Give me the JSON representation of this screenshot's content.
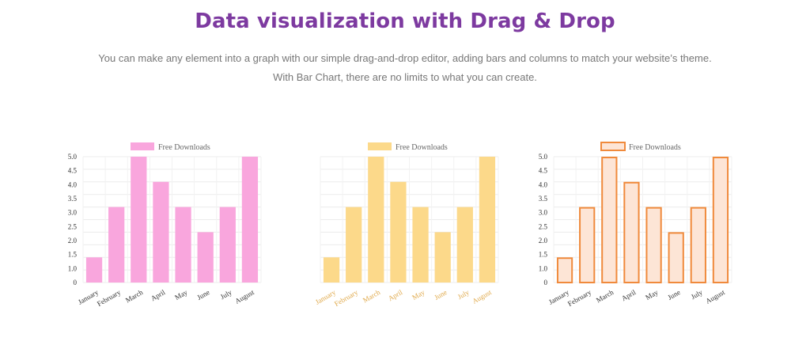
{
  "header": {
    "title": "Data visualization with Drag & Drop",
    "line1": "You can make any element into a graph with our simple drag-and-drop editor, adding bars and columns to match your website’s theme.",
    "line2": "With Bar Chart, there are no limits to what you can create."
  },
  "chart_data": [
    {
      "type": "bar",
      "legend": "Free Downloads",
      "legend_position": "top-center",
      "categories": [
        "January",
        "February",
        "March",
        "April",
        "May",
        "June",
        "July",
        "August"
      ],
      "series": [
        {
          "name": "Free Downloads",
          "values": [
            1,
            3,
            5,
            4,
            3,
            2,
            3,
            5
          ]
        }
      ],
      "ylim": [
        0,
        5
      ],
      "yticks": [
        "0",
        "1.0",
        "1.5",
        "2.0",
        "2.5",
        "3.0",
        "3.5",
        "4.0",
        "4.5",
        "5.0"
      ],
      "show_y_ticks": true,
      "grid": true,
      "fill": "#f9a6dd",
      "stroke": "#f9a6dd",
      "label_color": "#333333"
    },
    {
      "type": "bar",
      "legend": "Free Downloads",
      "legend_position": "top-center",
      "categories": [
        "January",
        "February",
        "March",
        "April",
        "May",
        "June",
        "July",
        "August"
      ],
      "series": [
        {
          "name": "Free Downloads",
          "values": [
            1,
            3,
            5,
            4,
            3,
            2,
            3,
            5
          ]
        }
      ],
      "ylim": [
        0,
        5
      ],
      "show_y_ticks": false,
      "grid": true,
      "fill": "#fcd98a",
      "stroke": "#fcd98a",
      "label_color": "#e0a94a"
    },
    {
      "type": "bar",
      "legend": "Free Downloads",
      "legend_position": "top-center",
      "categories": [
        "January",
        "February",
        "March",
        "April",
        "May",
        "June",
        "July",
        "August"
      ],
      "series": [
        {
          "name": "Free Downloads",
          "values": [
            1,
            3,
            5,
            4,
            3,
            2,
            3,
            5
          ]
        }
      ],
      "ylim": [
        0,
        5
      ],
      "yticks": [
        "0",
        "1.0",
        "1.5",
        "2.0",
        "2.5",
        "3.0",
        "3.5",
        "4.0",
        "4.5",
        "5.0"
      ],
      "show_y_ticks": true,
      "grid": true,
      "fill": "#fde5d6",
      "stroke": "#f08a3c",
      "label_color": "#333333"
    }
  ]
}
